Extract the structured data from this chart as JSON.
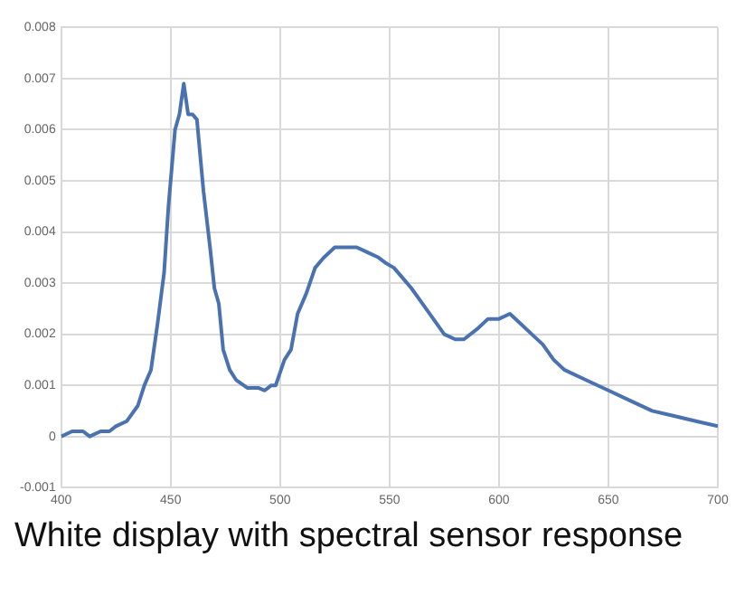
{
  "chart_data": {
    "type": "line",
    "annotations": [
      "White display with spectral sensor response"
    ],
    "series": [
      {
        "color": "#4a72b0",
        "x": [
          400,
          405,
          410,
          413,
          418,
          422,
          425,
          430,
          435,
          438,
          441,
          444,
          447,
          449,
          452,
          454,
          456,
          458,
          460,
          462,
          465,
          468,
          470,
          472,
          474,
          477,
          480,
          485,
          490,
          493,
          496,
          498,
          502,
          505,
          508,
          512,
          516,
          520,
          525,
          530,
          535,
          540,
          545,
          548,
          552,
          556,
          560,
          565,
          570,
          575,
          580,
          584,
          590,
          595,
          600,
          605,
          610,
          615,
          620,
          625,
          630,
          640,
          650,
          660,
          670,
          680,
          690,
          700
        ],
        "values": [
          0,
          0.0001,
          0.0001,
          0,
          0.0001,
          0.0001,
          0.0002,
          0.0003,
          0.0006,
          0.001,
          0.0013,
          0.0022,
          0.0032,
          0.0045,
          0.006,
          0.0063,
          0.0069,
          0.0063,
          0.0063,
          0.0062,
          0.0048,
          0.0037,
          0.0029,
          0.0026,
          0.0017,
          0.0013,
          0.0011,
          0.00095,
          0.00095,
          0.0009,
          0.001,
          0.001,
          0.0015,
          0.0017,
          0.0024,
          0.0028,
          0.0033,
          0.0035,
          0.0037,
          0.0037,
          0.0037,
          0.0036,
          0.0035,
          0.0034,
          0.0033,
          0.0031,
          0.0029,
          0.0026,
          0.0023,
          0.002,
          0.0019,
          0.0019,
          0.0021,
          0.0023,
          0.0023,
          0.0024,
          0.0022,
          0.002,
          0.0018,
          0.0015,
          0.0013,
          0.0011,
          0.0009,
          0.0007,
          0.0005,
          0.0004,
          0.0003,
          0.0002
        ]
      }
    ],
    "xlim": [
      400,
      700
    ],
    "xticks": [
      400,
      450,
      500,
      550,
      600,
      650,
      700
    ],
    "ylim": [
      -0.001,
      0.008
    ],
    "yticks": [
      -0.001,
      0,
      0.001,
      0.002,
      0.003,
      0.004,
      0.005,
      0.006,
      0.007,
      0.008
    ],
    "grid": true,
    "legend": false,
    "marker": "none",
    "line_style": "solid"
  }
}
